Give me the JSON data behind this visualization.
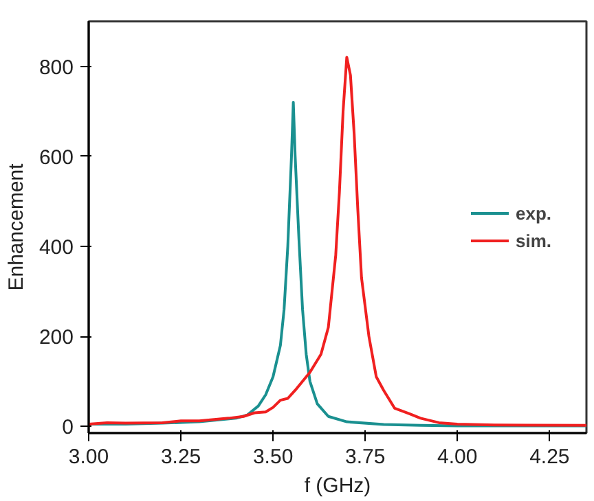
{
  "chart_data": {
    "type": "line",
    "xlabel": "f (GHz)",
    "ylabel": "Enhancement",
    "xlim": [
      3.0,
      4.35
    ],
    "ylim": [
      -15,
      900
    ],
    "xticks": [
      {
        "value": 3.0,
        "label": "3.00"
      },
      {
        "value": 3.25,
        "label": "3.25"
      },
      {
        "value": 3.5,
        "label": "3.50"
      },
      {
        "value": 3.75,
        "label": "3.75"
      },
      {
        "value": 4.0,
        "label": "4.00"
      },
      {
        "value": 4.25,
        "label": "4.25"
      }
    ],
    "yticks": [
      0,
      200,
      400,
      600,
      800
    ],
    "grid": false,
    "legend": "right",
    "line_style": "solid",
    "marker": "none",
    "series": [
      {
        "name": "exp.",
        "color": "#1a9090",
        "x": [
          3.0,
          3.1,
          3.2,
          3.3,
          3.4,
          3.43,
          3.46,
          3.48,
          3.5,
          3.52,
          3.53,
          3.54,
          3.55,
          3.555,
          3.56,
          3.57,
          3.58,
          3.59,
          3.6,
          3.62,
          3.65,
          3.7,
          3.8,
          3.9,
          4.0,
          4.35
        ],
        "values": [
          5,
          5,
          7,
          10,
          18,
          25,
          45,
          70,
          110,
          180,
          260,
          400,
          600,
          720,
          600,
          420,
          260,
          160,
          100,
          50,
          22,
          10,
          4,
          2,
          1,
          1
        ]
      },
      {
        "name": "sim.",
        "color": "#f02020",
        "x": [
          3.0,
          3.05,
          3.1,
          3.2,
          3.25,
          3.3,
          3.38,
          3.42,
          3.45,
          3.48,
          3.5,
          3.52,
          3.54,
          3.56,
          3.6,
          3.63,
          3.65,
          3.67,
          3.68,
          3.69,
          3.7,
          3.71,
          3.72,
          3.73,
          3.74,
          3.76,
          3.78,
          3.8,
          3.83,
          3.87,
          3.9,
          3.95,
          4.0,
          4.1,
          4.35
        ],
        "values": [
          5,
          8,
          7,
          8,
          12,
          12,
          18,
          22,
          30,
          32,
          42,
          58,
          62,
          80,
          120,
          160,
          220,
          380,
          520,
          700,
          820,
          780,
          650,
          480,
          330,
          200,
          110,
          80,
          40,
          28,
          18,
          8,
          5,
          3,
          2
        ]
      }
    ]
  }
}
